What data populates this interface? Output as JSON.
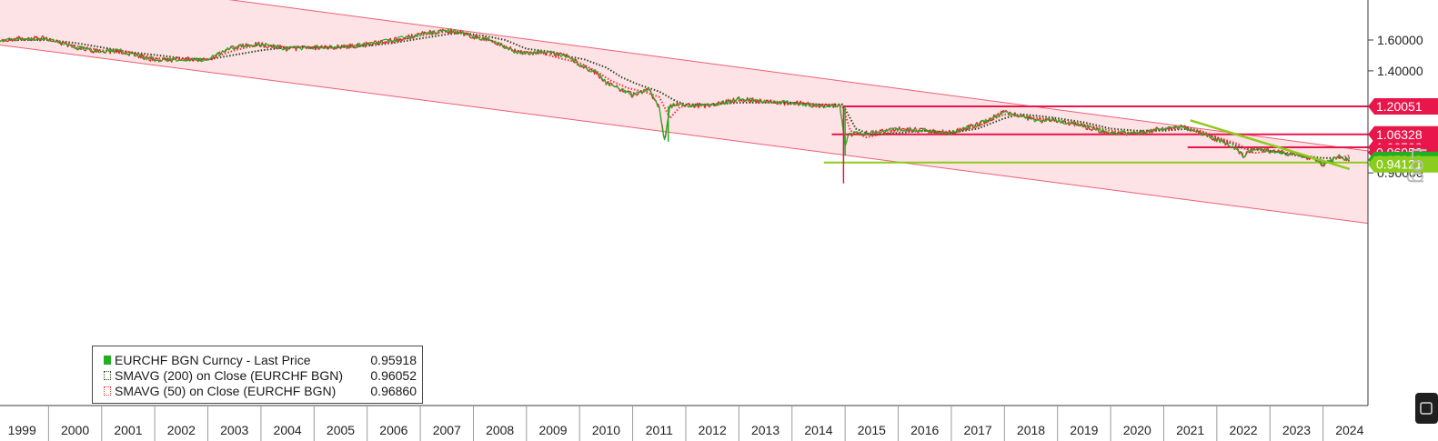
{
  "chart_data": {
    "type": "line",
    "scale": "log",
    "axis_label": "Log",
    "x_axis": {
      "tick_labels": [
        "1999",
        "2000",
        "2001",
        "2002",
        "2003",
        "2004",
        "2005",
        "2006",
        "2007",
        "2008",
        "2009",
        "2010",
        "2011",
        "2012",
        "2013",
        "2014",
        "2015",
        "2016",
        "2017",
        "2018",
        "2019",
        "2020",
        "2021",
        "2022",
        "2023",
        "2024"
      ],
      "range": [
        1999.0,
        2025.0
      ]
    },
    "y_axis": {
      "position": "right",
      "tick_labels": [
        "1.60000",
        "1.40000",
        "0.90000"
      ],
      "ticks": [
        1.6,
        1.4,
        0.9
      ],
      "range": [
        0.8,
        1.7
      ]
    },
    "grid": false,
    "legend": {
      "placement": "bottom-left",
      "items": [
        {
          "label": "EURCHF BGN Curncy - Last Price",
          "value": "0.95918",
          "color": "#22b022",
          "style": "solid"
        },
        {
          "label": "SMAVG (200)  on Close (EURCHF BGN)",
          "value": "0.96052",
          "color": "#2f4a1f",
          "style": "dotted"
        },
        {
          "label": "SMAVG (50)  on Close (EURCHF BGN)",
          "value": "0.96860",
          "color": "#e83a3a",
          "style": "dotted"
        }
      ]
    },
    "series": [
      {
        "name": "EURCHF BGN Curncy - Last Price",
        "color": "#22b022",
        "x": [
          1999.0,
          1999.5,
          2000.0,
          2000.5,
          2001.0,
          2001.3,
          2001.6,
          2002.0,
          2002.5,
          2003.0,
          2003.4,
          2003.8,
          2004.0,
          2004.5,
          2005.0,
          2005.5,
          2006.0,
          2006.5,
          2007.0,
          2007.5,
          2007.8,
          2008.0,
          2008.3,
          2008.5,
          2008.8,
          2009.0,
          2009.2,
          2009.5,
          2009.8,
          2010.0,
          2010.3,
          2010.5,
          2010.8,
          2011.0,
          2011.3,
          2011.5,
          2011.6,
          2011.7,
          2011.8,
          2012.0,
          2012.5,
          2013.0,
          2013.3,
          2013.7,
          2014.0,
          2014.5,
          2014.9,
          2015.0,
          2015.05,
          2015.2,
          2015.5,
          2016.0,
          2016.5,
          2017.0,
          2017.5,
          2018.0,
          2018.3,
          2018.6,
          2019.0,
          2019.5,
          2020.0,
          2020.5,
          2021.0,
          2021.3,
          2021.6,
          2022.0,
          2022.3,
          2022.5,
          2022.7,
          2023.0,
          2023.3,
          2023.6,
          2023.9,
          2024.0,
          2024.3,
          2024.5
        ],
        "y": [
          1.6,
          1.61,
          1.61,
          1.55,
          1.52,
          1.53,
          1.5,
          1.47,
          1.47,
          1.47,
          1.54,
          1.57,
          1.57,
          1.54,
          1.55,
          1.55,
          1.57,
          1.6,
          1.64,
          1.67,
          1.65,
          1.62,
          1.6,
          1.57,
          1.52,
          1.51,
          1.52,
          1.51,
          1.49,
          1.44,
          1.39,
          1.33,
          1.29,
          1.26,
          1.29,
          1.19,
          1.03,
          1.2,
          1.21,
          1.205,
          1.205,
          1.24,
          1.23,
          1.22,
          1.22,
          1.205,
          1.2,
          1.01,
          1.06,
          1.07,
          1.07,
          1.09,
          1.08,
          1.07,
          1.11,
          1.17,
          1.15,
          1.13,
          1.13,
          1.1,
          1.07,
          1.07,
          1.09,
          1.1,
          1.08,
          1.04,
          1.01,
          0.97,
          1.0,
          0.99,
          0.98,
          0.97,
          0.95,
          0.93,
          0.97,
          0.95
        ]
      },
      {
        "name": "SMAVG (200)  on Close (EURCHF BGN)",
        "color": "#2f4a1f",
        "x": [
          1999.0,
          2000.0,
          2000.5,
          2001.0,
          2001.5,
          2002.0,
          2002.5,
          2003.0,
          2003.5,
          2004.0,
          2004.5,
          2005.0,
          2005.5,
          2006.0,
          2006.5,
          2007.0,
          2007.5,
          2007.8,
          2008.2,
          2008.6,
          2009.0,
          2009.5,
          2009.8,
          2010.1,
          2010.5,
          2010.8,
          2011.1,
          2011.5,
          2011.8,
          2012.0,
          2012.5,
          2013.0,
          2013.5,
          2014.0,
          2014.5,
          2014.95,
          2015.2,
          2015.5,
          2016.0,
          2016.5,
          2017.0,
          2017.5,
          2018.0,
          2018.3,
          2018.7,
          2019.0,
          2019.5,
          2020.0,
          2020.5,
          2021.0,
          2021.5,
          2022.0,
          2022.5,
          2023.0,
          2023.5,
          2024.0,
          2024.5
        ],
        "y": [
          1.6,
          1.6,
          1.58,
          1.55,
          1.52,
          1.5,
          1.48,
          1.47,
          1.5,
          1.53,
          1.55,
          1.55,
          1.55,
          1.56,
          1.58,
          1.61,
          1.64,
          1.65,
          1.63,
          1.6,
          1.54,
          1.52,
          1.49,
          1.47,
          1.42,
          1.36,
          1.32,
          1.28,
          1.23,
          1.21,
          1.21,
          1.22,
          1.22,
          1.22,
          1.21,
          1.21,
          1.09,
          1.06,
          1.07,
          1.08,
          1.07,
          1.09,
          1.14,
          1.16,
          1.15,
          1.14,
          1.12,
          1.09,
          1.08,
          1.08,
          1.09,
          1.05,
          1.0,
          0.99,
          0.97,
          0.96,
          0.96
        ]
      },
      {
        "name": "SMAVG (50)  on Close (EURCHF BGN)",
        "color": "#e83a3a",
        "x": [
          1999.0,
          2000.0,
          2000.5,
          2001.0,
          2001.5,
          2002.0,
          2002.5,
          2003.0,
          2003.5,
          2004.0,
          2004.5,
          2005.0,
          2005.5,
          2006.0,
          2006.5,
          2007.0,
          2007.5,
          2007.8,
          2008.1,
          2008.4,
          2008.7,
          2009.0,
          2009.3,
          2009.6,
          2010.0,
          2010.3,
          2010.6,
          2010.9,
          2011.2,
          2011.5,
          2011.7,
          2011.9,
          2012.2,
          2012.5,
          2013.0,
          2013.5,
          2014.0,
          2014.5,
          2014.95,
          2015.1,
          2015.4,
          2016.0,
          2016.5,
          2017.0,
          2017.5,
          2018.0,
          2018.3,
          2018.7,
          2019.0,
          2019.5,
          2020.0,
          2020.5,
          2021.0,
          2021.4,
          2021.7,
          2022.0,
          2022.4,
          2022.7,
          2023.0,
          2023.4,
          2023.8,
          2024.0,
          2024.3,
          2024.5
        ],
        "y": [
          1.6,
          1.61,
          1.56,
          1.53,
          1.52,
          1.48,
          1.47,
          1.47,
          1.53,
          1.57,
          1.55,
          1.55,
          1.55,
          1.57,
          1.59,
          1.63,
          1.66,
          1.65,
          1.62,
          1.59,
          1.53,
          1.52,
          1.51,
          1.48,
          1.45,
          1.4,
          1.34,
          1.3,
          1.28,
          1.25,
          1.14,
          1.2,
          1.2,
          1.21,
          1.23,
          1.23,
          1.22,
          1.21,
          1.2,
          1.08,
          1.05,
          1.08,
          1.08,
          1.07,
          1.1,
          1.16,
          1.15,
          1.14,
          1.13,
          1.11,
          1.08,
          1.07,
          1.09,
          1.1,
          1.08,
          1.05,
          1.02,
          0.98,
          0.99,
          0.98,
          0.96,
          0.94,
          0.96,
          0.97
        ]
      }
    ],
    "horizontal_levels": [
      {
        "value": 1.20051,
        "label": "1.20051",
        "color": "#e8164a",
        "from_x": 2014.95
      },
      {
        "value": 1.06328,
        "label": "1.06328",
        "color": "#e8164a",
        "from_x": 2014.75
      },
      {
        "value": 1.00508,
        "label": "1.00508",
        "color": "#e8164a",
        "from_x": 2021.45
      },
      {
        "value": 0.94121,
        "label": "0.94121",
        "color": "#8ccc1c",
        "from_x": 2014.6
      }
    ],
    "last_price_tag": {
      "value": 0.95918,
      "label": "0.95918",
      "color": "#22b022"
    },
    "hidden_tag": {
      "value": 0.96052,
      "label": "0.96052",
      "color": "#e8164a"
    },
    "regression_channel": {
      "fill": "#fde2e6",
      "edge_color": "#ee5f73",
      "upper": [
        [
          1999.0,
          2.18
        ],
        [
          2025.0,
          0.985
        ]
      ],
      "lower": [
        [
          1999.0,
          1.57
        ],
        [
          2025.0,
          0.72
        ]
      ]
    },
    "trendline": {
      "color": "#8ccc1c",
      "points": [
        [
          2021.5,
          1.13
        ],
        [
          2024.5,
          0.915
        ]
      ]
    },
    "spikes": [
      {
        "x": 2011.67,
        "low": 1.03,
        "color": "#22b022"
      },
      {
        "x": 2014.97,
        "low": 0.86,
        "color": "#e8164a"
      },
      {
        "x": 2015.0,
        "low": 0.97,
        "color": "#22b022"
      }
    ]
  }
}
